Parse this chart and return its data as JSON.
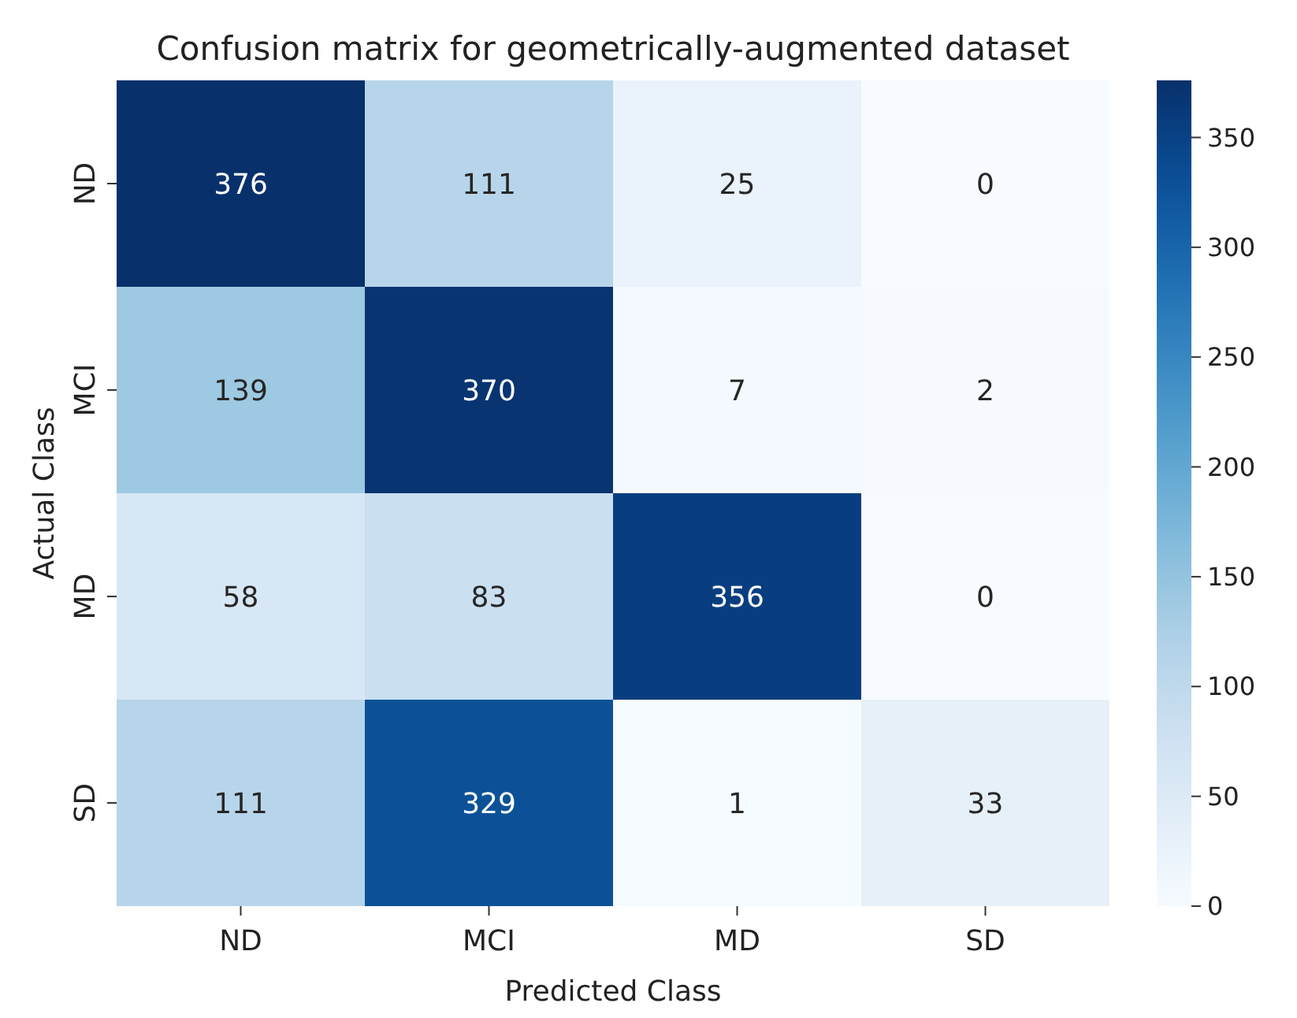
{
  "chart_data": {
    "type": "heatmap",
    "title": "Confusion matrix for geometrically-augmented dataset",
    "xlabel": "Predicted Class",
    "ylabel": "Actual Class",
    "categories": [
      "ND",
      "MCI",
      "MD",
      "SD"
    ],
    "y_categories": [
      "ND",
      "MCI",
      "MD",
      "SD"
    ],
    "cells": [
      [
        376,
        111,
        25,
        0
      ],
      [
        139,
        370,
        7,
        2
      ],
      [
        58,
        83,
        356,
        0
      ],
      [
        111,
        329,
        1,
        33
      ]
    ],
    "data_labels": true,
    "clim": [
      0,
      376
    ],
    "cticks": [
      0,
      50,
      100,
      150,
      200,
      250,
      300,
      350
    ]
  }
}
